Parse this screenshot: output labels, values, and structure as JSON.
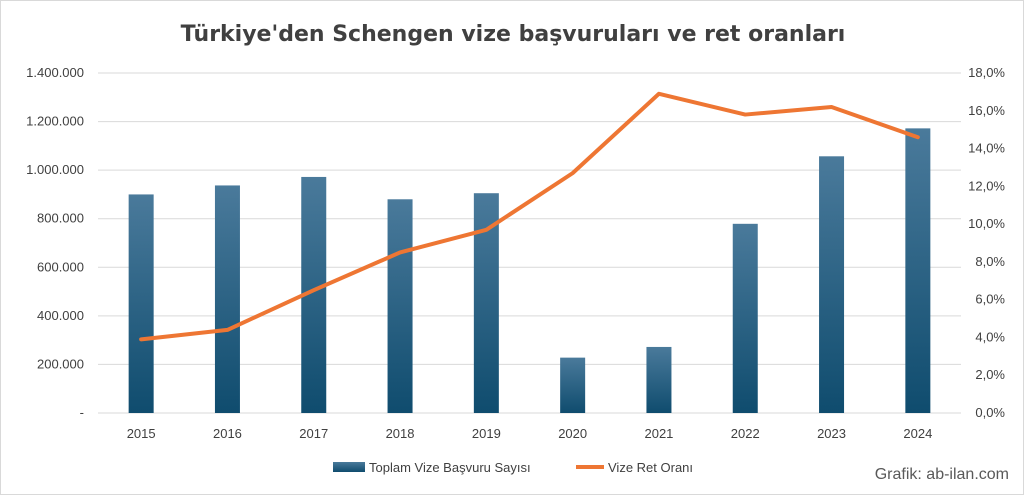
{
  "chart_data": {
    "type": "bar",
    "title": "Türkiye'den Schengen vize başvuruları  ve ret oranları",
    "categories": [
      "2015",
      "2016",
      "2017",
      "2018",
      "2019",
      "2020",
      "2021",
      "2022",
      "2023",
      "2024"
    ],
    "series": [
      {
        "name": "Toplam Vize Başvuru Sayısı",
        "type": "bar",
        "axis": "left",
        "color": "#2f6b8f",
        "values": [
          900000,
          937000,
          972000,
          880000,
          905000,
          228000,
          272000,
          779000,
          1057000,
          1172000
        ]
      },
      {
        "name": "Vize Ret Oranı",
        "type": "line",
        "axis": "right",
        "color": "#ee7633",
        "values": [
          3.9,
          4.4,
          6.5,
          8.5,
          9.7,
          12.7,
          16.9,
          15.8,
          16.2,
          14.6
        ]
      }
    ],
    "y_left": {
      "ylim": [
        0,
        1400000
      ],
      "tick_labels": [
        "-",
        "200.000",
        "400.000",
        "600.000",
        "800.000",
        "1.000.000",
        "1.200.000",
        "1.400.000"
      ]
    },
    "y_right": {
      "ylim": [
        0,
        18
      ],
      "tick_labels": [
        "0,0%",
        "2,0%",
        "4,0%",
        "6,0%",
        "8,0%",
        "10,0%",
        "12,0%",
        "14,0%",
        "16,0%",
        "18,0%"
      ]
    },
    "grid": true,
    "legend_position": "bottom"
  },
  "credit": "Grafik: ab-ilan.com"
}
